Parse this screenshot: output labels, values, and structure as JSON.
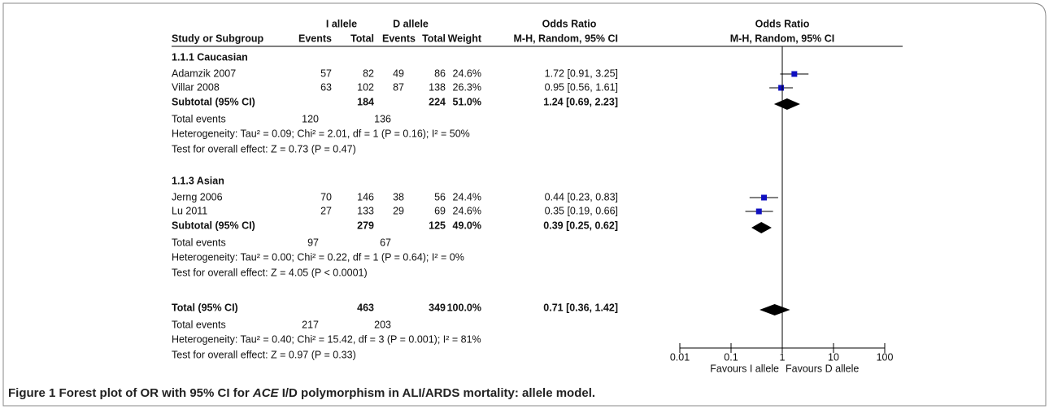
{
  "header": {
    "i_allele": "I allele",
    "d_allele": "D allele",
    "odds_ratio": "Odds Ratio",
    "plot_odds_ratio": "Odds Ratio",
    "study": "Study or Subgroup",
    "events_i": "Events",
    "total_i": "Total",
    "events_d": "Events",
    "total_d": "Total",
    "weight": "Weight",
    "method": "M-H, Random, 95% CI",
    "plot_method": "M-H, Random, 95% CI"
  },
  "groups": [
    {
      "title": "1.1.1 Caucasian",
      "studies": [
        {
          "name": "Adamzik 2007",
          "events_i": 57,
          "total_i": 82,
          "events_d": 49,
          "total_d": 86,
          "weight": "24.6%",
          "or": 1.72,
          "lower": 0.91,
          "upper": 3.25,
          "or_label": "1.72 [0.91, 3.25]"
        },
        {
          "name": "Villar 2008",
          "events_i": 63,
          "total_i": 102,
          "events_d": 87,
          "total_d": 138,
          "weight": "26.3%",
          "or": 0.95,
          "lower": 0.56,
          "upper": 1.61,
          "or_label": "0.95 [0.56, 1.61]"
        }
      ],
      "subtotal": {
        "label": "Subtotal (95% CI)",
        "total_i": 184,
        "total_d": 224,
        "weight": "51.0%",
        "or": 1.24,
        "lower": 0.69,
        "upper": 2.23,
        "or_label": "1.24 [0.69, 2.23]"
      },
      "total_events": {
        "label": "Total events",
        "events_i": 120,
        "events_d": 136
      },
      "heterogeneity": "Heterogeneity: Tau² = 0.09; Chi² = 2.01, df = 1 (P = 0.16); I² = 50%",
      "test": "Test for overall effect: Z = 0.73 (P = 0.47)"
    },
    {
      "title": "1.1.3 Asian",
      "studies": [
        {
          "name": "Jerng 2006",
          "events_i": 70,
          "total_i": 146,
          "events_d": 38,
          "total_d": 56,
          "weight": "24.4%",
          "or": 0.44,
          "lower": 0.23,
          "upper": 0.83,
          "or_label": "0.44 [0.23, 0.83]"
        },
        {
          "name": "Lu 2011",
          "events_i": 27,
          "total_i": 133,
          "events_d": 29,
          "total_d": 69,
          "weight": "24.6%",
          "or": 0.35,
          "lower": 0.19,
          "upper": 0.66,
          "or_label": "0.35 [0.19, 0.66]"
        }
      ],
      "subtotal": {
        "label": "Subtotal (95% CI)",
        "total_i": 279,
        "total_d": 125,
        "weight": "49.0%",
        "or": 0.39,
        "lower": 0.25,
        "upper": 0.62,
        "or_label": "0.39 [0.25, 0.62]"
      },
      "total_events": {
        "label": "Total events",
        "events_i": 97,
        "events_d": 67
      },
      "heterogeneity": "Heterogeneity: Tau² = 0.00; Chi² = 0.22, df = 1 (P = 0.64); I² = 0%",
      "test": "Test for overall effect: Z = 4.05 (P < 0.0001)"
    }
  ],
  "overall": {
    "subtotal": {
      "label": "Total (95% CI)",
      "total_i": 463,
      "total_d": 349,
      "weight": "100.0%",
      "or": 0.71,
      "lower": 0.36,
      "upper": 1.42,
      "or_label": "0.71 [0.36, 1.42]"
    },
    "total_events": {
      "label": "Total events",
      "events_i": 217,
      "events_d": 203
    },
    "heterogeneity": "Heterogeneity: Tau² = 0.40; Chi² = 15.42, df = 3 (P = 0.001); I² = 81%",
    "test": "Test for overall effect: Z = 0.97 (P = 0.33)"
  },
  "axis": {
    "scale": "log",
    "xlim": [
      0.01,
      100
    ],
    "xticks": [
      0.01,
      0.1,
      1,
      10,
      100
    ],
    "reference": 1,
    "favours_left": "Favours I allele",
    "favours_right": "Favours D allele",
    "study_color": "#1010c0"
  },
  "caption": {
    "label": "Figure 1",
    "text_before": " Forest plot of OR with 95% CI for ",
    "italic": "ACE",
    "text_after": " I/D polymorphism in ALI/ARDS mortality: allele model."
  }
}
